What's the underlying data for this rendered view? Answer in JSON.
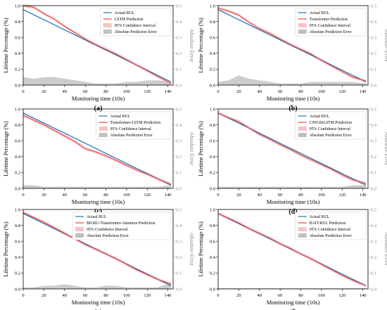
{
  "colors": {
    "actual": "#1f77b4",
    "prediction": "#e8474a",
    "confidence": "#f4a9ae",
    "error": "#bfbfbf"
  },
  "axes": {
    "ylabel_left": "Lifetime Percentage (%)",
    "ylabel_right": "Absolute Error",
    "xlabel": "Monitoring time (10s)",
    "x_ticks": [
      "0",
      "20",
      "40",
      "60",
      "80",
      "100",
      "120",
      "140"
    ],
    "y_left_ticks": [
      "0.0",
      "0.2",
      "0.4",
      "0.6",
      "0.8",
      "1.0"
    ],
    "y_right_ticks": [
      "0.0",
      "0.1",
      "0.2",
      "0.3",
      "0.4",
      "0.5"
    ]
  },
  "chart_data": [
    {
      "type": "line",
      "panel_label": "(a)",
      "xlim": [
        0,
        145
      ],
      "ylim": [
        0,
        1.0
      ],
      "y2lim": [
        0,
        0.5
      ],
      "legend": [
        "Actual RUL",
        "LSTM Prediction",
        "95% Confidence Interval",
        "Absolute Prediction Error"
      ],
      "actual": {
        "x": [
          0,
          143
        ],
        "y": [
          0.95,
          0.04
        ]
      },
      "prediction": {
        "x": [
          0,
          10,
          20,
          30,
          40,
          50,
          60,
          70,
          80,
          90,
          100,
          110,
          120,
          130,
          143
        ],
        "y": [
          1.0,
          0.98,
          0.9,
          0.83,
          0.74,
          0.66,
          0.58,
          0.51,
          0.45,
          0.39,
          0.32,
          0.25,
          0.18,
          0.11,
          0.02
        ]
      },
      "error": {
        "x": [
          0,
          10,
          20,
          30,
          40,
          50,
          60,
          70,
          80,
          90,
          100,
          110,
          120,
          130,
          143
        ],
        "y": [
          0.05,
          0.04,
          0.05,
          0.05,
          0.04,
          0.03,
          0.02,
          0.01,
          0.01,
          0.01,
          0.02,
          0.02,
          0.03,
          0.03,
          0.02
        ]
      }
    },
    {
      "type": "line",
      "panel_label": "(b)",
      "xlim": [
        0,
        145
      ],
      "ylim": [
        0,
        1.0
      ],
      "y2lim": [
        0,
        0.5
      ],
      "legend": [
        "Actual RUL",
        "Transformer Prediction",
        "95% Confidence Interval",
        "Absolute Prediction Error"
      ],
      "actual": {
        "x": [
          0,
          143
        ],
        "y": [
          0.95,
          0.04
        ]
      },
      "prediction": {
        "x": [
          0,
          10,
          20,
          30,
          40,
          50,
          60,
          70,
          80,
          90,
          100,
          110,
          120,
          130,
          143
        ],
        "y": [
          0.97,
          0.93,
          0.88,
          0.79,
          0.71,
          0.65,
          0.58,
          0.51,
          0.45,
          0.39,
          0.31,
          0.24,
          0.17,
          0.1,
          0.05
        ]
      },
      "error": {
        "x": [
          0,
          10,
          20,
          30,
          40,
          50,
          60,
          70,
          80,
          90,
          100,
          110,
          120,
          130,
          143
        ],
        "y": [
          0.02,
          0.03,
          0.06,
          0.04,
          0.03,
          0.02,
          0.01,
          0.01,
          0.01,
          0.02,
          0.02,
          0.02,
          0.02,
          0.02,
          0.01
        ]
      }
    },
    {
      "type": "line",
      "panel_label": "(c)",
      "xlim": [
        0,
        145
      ],
      "ylim": [
        0,
        1.0
      ],
      "y2lim": [
        0,
        0.5
      ],
      "legend": [
        "Actual RUL",
        "Transformer-LSTM Prediction",
        "95% Confidence Interval",
        "Absolute Prediction Error"
      ],
      "actual": {
        "x": [
          0,
          143
        ],
        "y": [
          0.95,
          0.04
        ]
      },
      "prediction": {
        "x": [
          0,
          10,
          20,
          30,
          40,
          50,
          60,
          70,
          80,
          90,
          100,
          110,
          120,
          130,
          143
        ],
        "y": [
          0.92,
          0.86,
          0.8,
          0.73,
          0.66,
          0.59,
          0.5,
          0.46,
          0.41,
          0.35,
          0.29,
          0.23,
          0.18,
          0.12,
          0.05
        ]
      },
      "error": {
        "x": [
          0,
          10,
          20,
          30,
          40,
          50,
          60,
          70,
          80,
          90,
          100,
          110,
          120,
          130,
          143
        ],
        "y": [
          0.02,
          0.02,
          0.01,
          0.01,
          0.01,
          0.01,
          0.01,
          0.01,
          0.01,
          0.01,
          0.01,
          0.01,
          0.01,
          0.01,
          0.02
        ]
      }
    },
    {
      "type": "line",
      "panel_label": "(d)",
      "xlim": [
        0,
        145
      ],
      "ylim": [
        0,
        1.0
      ],
      "y2lim": [
        0,
        0.5
      ],
      "legend": [
        "Actual RUL",
        "CNN-BiLSTM Prediction",
        "95% Confidence Interval",
        "Absolute Prediction Error"
      ],
      "actual": {
        "x": [
          0,
          143
        ],
        "y": [
          0.95,
          0.04
        ]
      },
      "prediction": {
        "x": [
          0,
          10,
          20,
          30,
          40,
          50,
          60,
          70,
          80,
          90,
          100,
          110,
          120,
          130,
          143
        ],
        "y": [
          0.95,
          0.89,
          0.84,
          0.76,
          0.68,
          0.62,
          0.55,
          0.49,
          0.42,
          0.36,
          0.3,
          0.24,
          0.17,
          0.11,
          0.06
        ]
      },
      "error": {
        "x": [
          0,
          10,
          20,
          30,
          40,
          50,
          60,
          70,
          80,
          90,
          100,
          110,
          120,
          130,
          143
        ],
        "y": [
          0.01,
          0.01,
          0.01,
          0.01,
          0.01,
          0.01,
          0.01,
          0.01,
          0.01,
          0.01,
          0.01,
          0.01,
          0.01,
          0.02,
          0.02
        ]
      }
    },
    {
      "type": "line",
      "panel_label": "(e)",
      "xlim": [
        0,
        145
      ],
      "ylim": [
        0,
        1.0
      ],
      "y2lim": [
        0,
        0.5
      ],
      "legend": [
        "Actual RUL",
        "BiGRU-Transformer-Attention Prediction",
        "95% Confidence Interval",
        "Absolute Prediction Error"
      ],
      "actual": {
        "x": [
          0,
          143
        ],
        "y": [
          0.95,
          0.04
        ]
      },
      "prediction": {
        "x": [
          0,
          10,
          20,
          30,
          40,
          50,
          60,
          70,
          80,
          90,
          100,
          110,
          120,
          130,
          143
        ],
        "y": [
          0.96,
          0.9,
          0.84,
          0.77,
          0.7,
          0.63,
          0.56,
          0.5,
          0.44,
          0.38,
          0.31,
          0.24,
          0.18,
          0.12,
          0.06
        ]
      },
      "error": {
        "x": [
          0,
          10,
          20,
          30,
          40,
          50,
          60,
          70,
          80,
          90,
          100,
          110,
          120,
          130,
          143
        ],
        "y": [
          0.01,
          0.01,
          0.02,
          0.02,
          0.03,
          0.02,
          0.01,
          0.01,
          0.02,
          0.02,
          0.01,
          0.01,
          0.01,
          0.01,
          0.04
        ]
      }
    },
    {
      "type": "line",
      "panel_label": "(f)",
      "xlim": [
        0,
        145
      ],
      "ylim": [
        0,
        1.0
      ],
      "y2lim": [
        0,
        0.5
      ],
      "legend": [
        "Actual RUL",
        "BAIT-RUL Prediction",
        "95% Confidence Interval",
        "Absolute Prediction Error"
      ],
      "actual": {
        "x": [
          0,
          143
        ],
        "y": [
          0.95,
          0.04
        ]
      },
      "prediction": {
        "x": [
          0,
          10,
          20,
          30,
          40,
          50,
          60,
          70,
          80,
          90,
          100,
          110,
          120,
          130,
          143
        ],
        "y": [
          0.95,
          0.89,
          0.83,
          0.76,
          0.7,
          0.64,
          0.57,
          0.51,
          0.44,
          0.38,
          0.31,
          0.24,
          0.17,
          0.11,
          0.04
        ]
      },
      "error": {
        "x": [
          0,
          10,
          20,
          30,
          40,
          50,
          60,
          70,
          80,
          90,
          100,
          110,
          120,
          130,
          143
        ],
        "y": [
          0.005,
          0.005,
          0.005,
          0.005,
          0.005,
          0.005,
          0.005,
          0.005,
          0.005,
          0.005,
          0.005,
          0.005,
          0.005,
          0.005,
          0.005
        ]
      }
    }
  ]
}
